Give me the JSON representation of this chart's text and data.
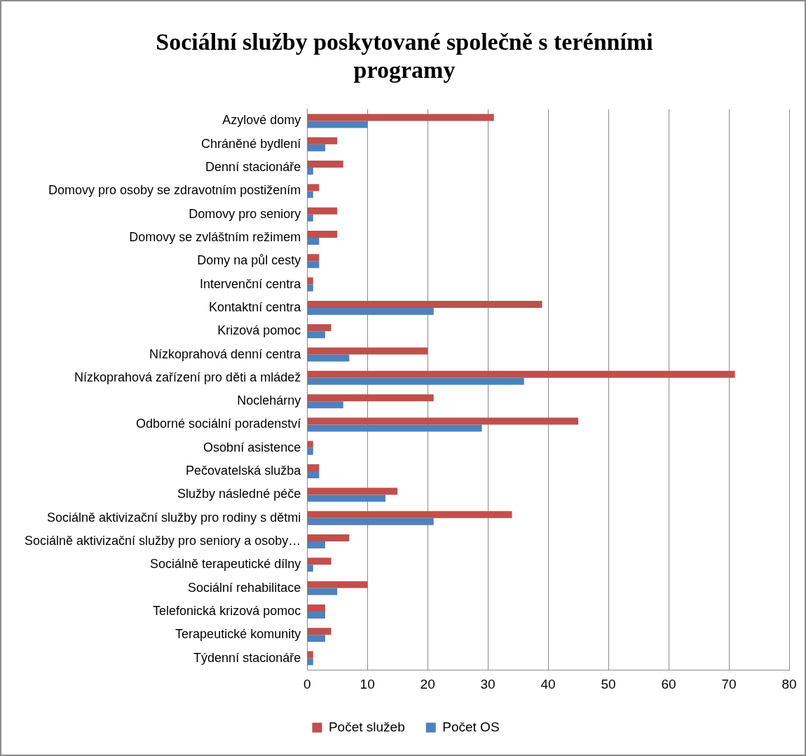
{
  "chart_data": {
    "type": "bar",
    "orientation": "horizontal",
    "title": "Sociální služby poskytované společně s terénními programy",
    "categories": [
      "Azylové domy",
      "Chráněné bydlení",
      "Denní stacionáře",
      "Domovy pro osoby se zdravotním postižením",
      "Domovy pro seniory",
      "Domovy se zvláštním režimem",
      "Domy na půl cesty",
      "Intervenční centra",
      "Kontaktní centra",
      "Krizová pomoc",
      "Nízkoprahová denní centra",
      "Nízkoprahová zařízení pro děti a mládež",
      "Noclehárny",
      "Odborné sociální poradenství",
      "Osobní asistence",
      "Pečovatelská služba",
      "Služby následné péče",
      "Sociálně aktivizační služby pro rodiny s dětmi",
      "Sociálně aktivizační služby pro seniory a osoby…",
      "Sociálně terapeutické dílny",
      "Sociální rehabilitace",
      "Telefonická krizová pomoc",
      "Terapeutické komunity",
      "Týdenní stacionáře"
    ],
    "series": [
      {
        "name": "Počet služeb",
        "color": "#c0504d",
        "values": [
          31,
          5,
          6,
          2,
          5,
          5,
          2,
          1,
          39,
          4,
          20,
          71,
          21,
          45,
          1,
          2,
          15,
          34,
          7,
          4,
          10,
          3,
          4,
          1
        ]
      },
      {
        "name": "Počet OS",
        "color": "#4f81bd",
        "values": [
          10,
          3,
          1,
          1,
          1,
          2,
          2,
          1,
          21,
          3,
          7,
          36,
          6,
          29,
          1,
          2,
          13,
          21,
          3,
          1,
          5,
          3,
          3,
          1
        ]
      }
    ],
    "xlim": [
      0,
      80
    ],
    "xticks": [
      0,
      10,
      20,
      30,
      40,
      50,
      60,
      70,
      80
    ],
    "grid": "x",
    "legend": "bottom"
  }
}
